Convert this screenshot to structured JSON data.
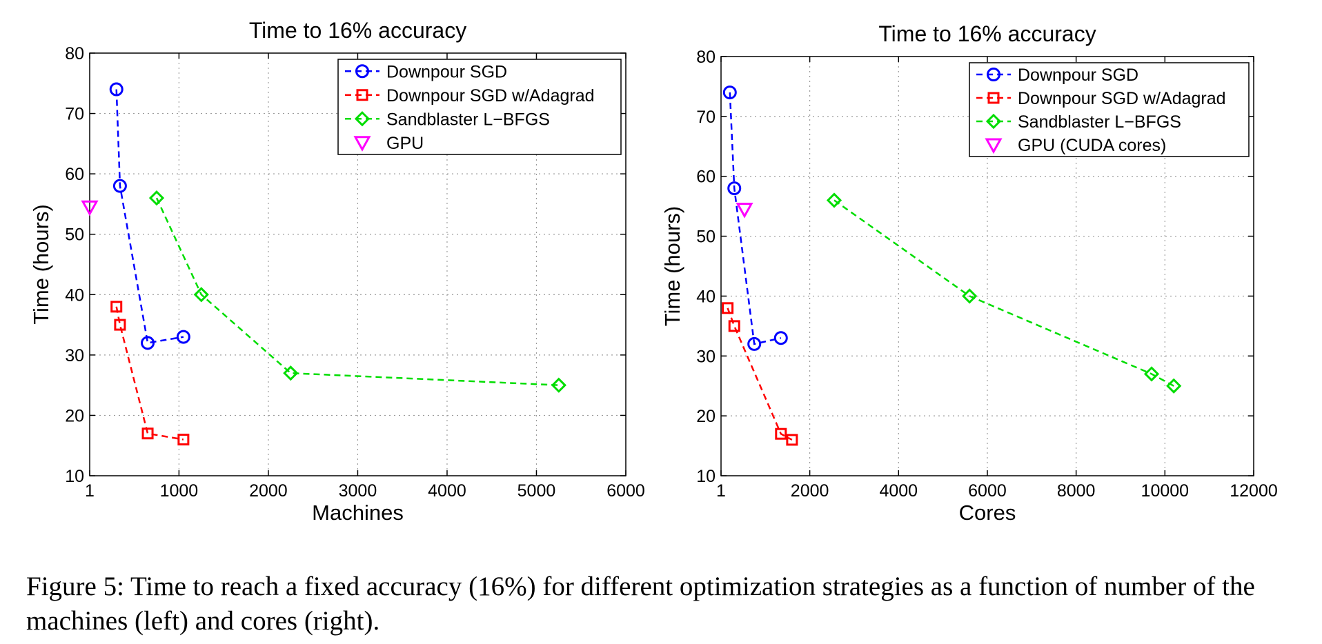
{
  "chart_data": [
    {
      "type": "line",
      "title": "Time to 16% accuracy",
      "xlabel": "Machines",
      "ylabel": "Time (hours)",
      "xlim": [
        1,
        6000
      ],
      "ylim": [
        10,
        80
      ],
      "xticks": [
        1,
        1000,
        2000,
        3000,
        4000,
        5000,
        6000
      ],
      "yticks": [
        10,
        20,
        30,
        40,
        50,
        60,
        70,
        80
      ],
      "grid": true,
      "legend_position": "top-right",
      "series": [
        {
          "name": "Downpour SGD",
          "marker": "circle",
          "color": "#0000ff",
          "x": [
            300,
            340,
            650,
            1050
          ],
          "y": [
            74,
            58,
            32,
            33
          ]
        },
        {
          "name": "Downpour SGD w/Adagrad",
          "marker": "square",
          "color": "#ff0000",
          "x": [
            300,
            340,
            650,
            1050
          ],
          "y": [
            38,
            35,
            17,
            16
          ]
        },
        {
          "name": "Sandblaster L−BFGS",
          "marker": "diamond",
          "color": "#00dd00",
          "x": [
            750,
            1250,
            2250,
            5250
          ],
          "y": [
            56,
            40,
            27,
            25
          ]
        },
        {
          "name": "GPU",
          "marker": "triangle-down",
          "color": "#ff00ff",
          "x": [
            1
          ],
          "y": [
            54.5
          ]
        }
      ]
    },
    {
      "type": "line",
      "title": "Time to 16% accuracy",
      "xlabel": "Cores",
      "ylabel": "Time (hours)",
      "xlim": [
        1,
        12000
      ],
      "ylim": [
        10,
        80
      ],
      "xticks": [
        1,
        2000,
        4000,
        6000,
        8000,
        10000,
        12000
      ],
      "yticks": [
        10,
        20,
        30,
        40,
        50,
        60,
        70,
        80
      ],
      "grid": true,
      "legend_position": "top-right",
      "series": [
        {
          "name": "Downpour SGD",
          "marker": "circle",
          "color": "#0000ff",
          "x": [
            200,
            300,
            750,
            1350
          ],
          "y": [
            74,
            58,
            32,
            33
          ]
        },
        {
          "name": "Downpour SGD w/Adagrad",
          "marker": "square",
          "color": "#ff0000",
          "x": [
            150,
            300,
            1350,
            1600
          ],
          "y": [
            38,
            35,
            17,
            16
          ]
        },
        {
          "name": "Sandblaster L−BFGS",
          "marker": "diamond",
          "color": "#00dd00",
          "x": [
            2550,
            5600,
            9700,
            10200
          ],
          "y": [
            56,
            40,
            27,
            25
          ]
        },
        {
          "name": "GPU (CUDA cores)",
          "marker": "triangle-down",
          "color": "#ff00ff",
          "x": [
            530
          ],
          "y": [
            54.5
          ]
        }
      ]
    }
  ],
  "caption": "Figure 5: Time to reach a fixed accuracy (16%) for different optimization strategies as a function of number of the machines (left) and cores (right)."
}
